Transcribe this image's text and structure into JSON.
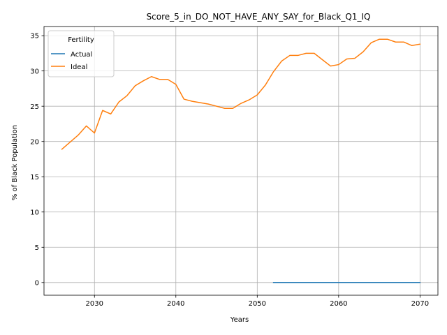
{
  "chart_data": {
    "type": "line",
    "title": "Score_5_in_DO_NOT_HAVE_ANY_SAY_for_Black_Q1_IQ",
    "xlabel": "Years",
    "ylabel": "% of Black Population",
    "xlim": [
      2023.8,
      2072.2
    ],
    "ylim": [
      -1.8,
      36.3
    ],
    "xticks": [
      2030,
      2040,
      2050,
      2060,
      2070
    ],
    "yticks": [
      0,
      5,
      10,
      15,
      20,
      25,
      30,
      35
    ],
    "grid": true,
    "legend": {
      "title": "Fertility",
      "position": "top-left"
    },
    "series": [
      {
        "name": "Actual",
        "color": "#1f77b4",
        "x": [
          2052,
          2053,
          2054,
          2055,
          2056,
          2057,
          2058,
          2059,
          2060,
          2061,
          2062,
          2063,
          2064,
          2065,
          2066,
          2067,
          2068,
          2069,
          2070
        ],
        "y": [
          0,
          0,
          0,
          0,
          0,
          0,
          0,
          0,
          0,
          0,
          0,
          0,
          0,
          0,
          0,
          0,
          0,
          0,
          0
        ]
      },
      {
        "name": "Ideal",
        "color": "#ff7f0e",
        "x": [
          2026,
          2027,
          2028,
          2029,
          2030,
          2031,
          2032,
          2033,
          2034,
          2035,
          2036,
          2037,
          2038,
          2039,
          2040,
          2041,
          2042,
          2043,
          2044,
          2045,
          2046,
          2047,
          2048,
          2049,
          2050,
          2051,
          2052,
          2053,
          2054,
          2055,
          2056,
          2057,
          2058,
          2059,
          2060,
          2061,
          2062,
          2063,
          2064,
          2065,
          2066,
          2067,
          2068,
          2069,
          2070
        ],
        "y": [
          18.9,
          19.9,
          20.9,
          22.2,
          21.2,
          24.4,
          23.9,
          25.6,
          26.5,
          27.9,
          28.6,
          29.2,
          28.8,
          28.8,
          28.1,
          26.0,
          25.7,
          25.5,
          25.3,
          25.0,
          24.7,
          24.7,
          25.4,
          25.9,
          26.6,
          28.0,
          29.9,
          31.4,
          32.2,
          32.2,
          32.5,
          32.5,
          31.6,
          30.7,
          30.9,
          31.7,
          31.8,
          32.7,
          34.0,
          34.5,
          34.5,
          34.1,
          34.1,
          33.6,
          33.8
        ]
      }
    ]
  }
}
